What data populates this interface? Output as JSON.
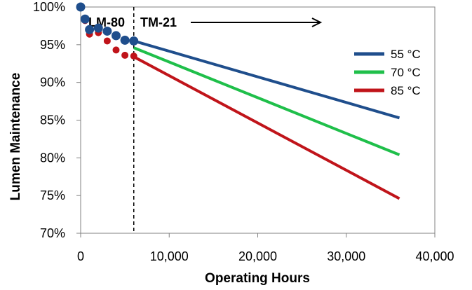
{
  "chart_data": {
    "type": "line",
    "xlabel": "Operating Hours",
    "ylabel": "Lumen Maintenance",
    "xlim": [
      0,
      40000
    ],
    "ylim": [
      70,
      100
    ],
    "x_ticks": [
      0,
      10000,
      20000,
      30000,
      40000
    ],
    "x_tick_labels": [
      "0",
      "10,000",
      "20,000",
      "30,000",
      "40,000"
    ],
    "y_ticks": [
      70,
      75,
      80,
      85,
      90,
      95,
      100
    ],
    "y_tick_labels": [
      "70%",
      "75%",
      "80%",
      "85%",
      "90%",
      "95%",
      "100%"
    ],
    "grid": false,
    "legend_position": "top-right",
    "divider_x": 6000,
    "phase_labels": {
      "measured": "LM-80",
      "projected": "TM-21"
    },
    "series": [
      {
        "name": "55 °C",
        "color": "#1f4e8c",
        "measured": {
          "x": [
            0,
            500,
            1000,
            2000,
            3000,
            4000,
            5000,
            6000
          ],
          "y": [
            100,
            98.4,
            97.0,
            97.2,
            96.8,
            96.2,
            95.6,
            95.5
          ]
        },
        "projection": {
          "x": [
            6000,
            36000
          ],
          "y": [
            95.5,
            85.3
          ]
        }
      },
      {
        "name": "70 °C",
        "color": "#1fbf4a",
        "measured": {
          "x": [],
          "y": []
        },
        "projection": {
          "x": [
            6000,
            36000
          ],
          "y": [
            94.6,
            80.4
          ]
        }
      },
      {
        "name": "85 °C",
        "color": "#c0141a",
        "measured": {
          "x": [
            0,
            500,
            1000,
            2000,
            3000,
            4000,
            5000,
            6000
          ],
          "y": [
            100,
            98.2,
            96.4,
            96.6,
            95.5,
            94.3,
            93.6,
            93.5
          ]
        },
        "projection": {
          "x": [
            6000,
            36000
          ],
          "y": [
            93.4,
            74.6
          ]
        }
      }
    ]
  }
}
